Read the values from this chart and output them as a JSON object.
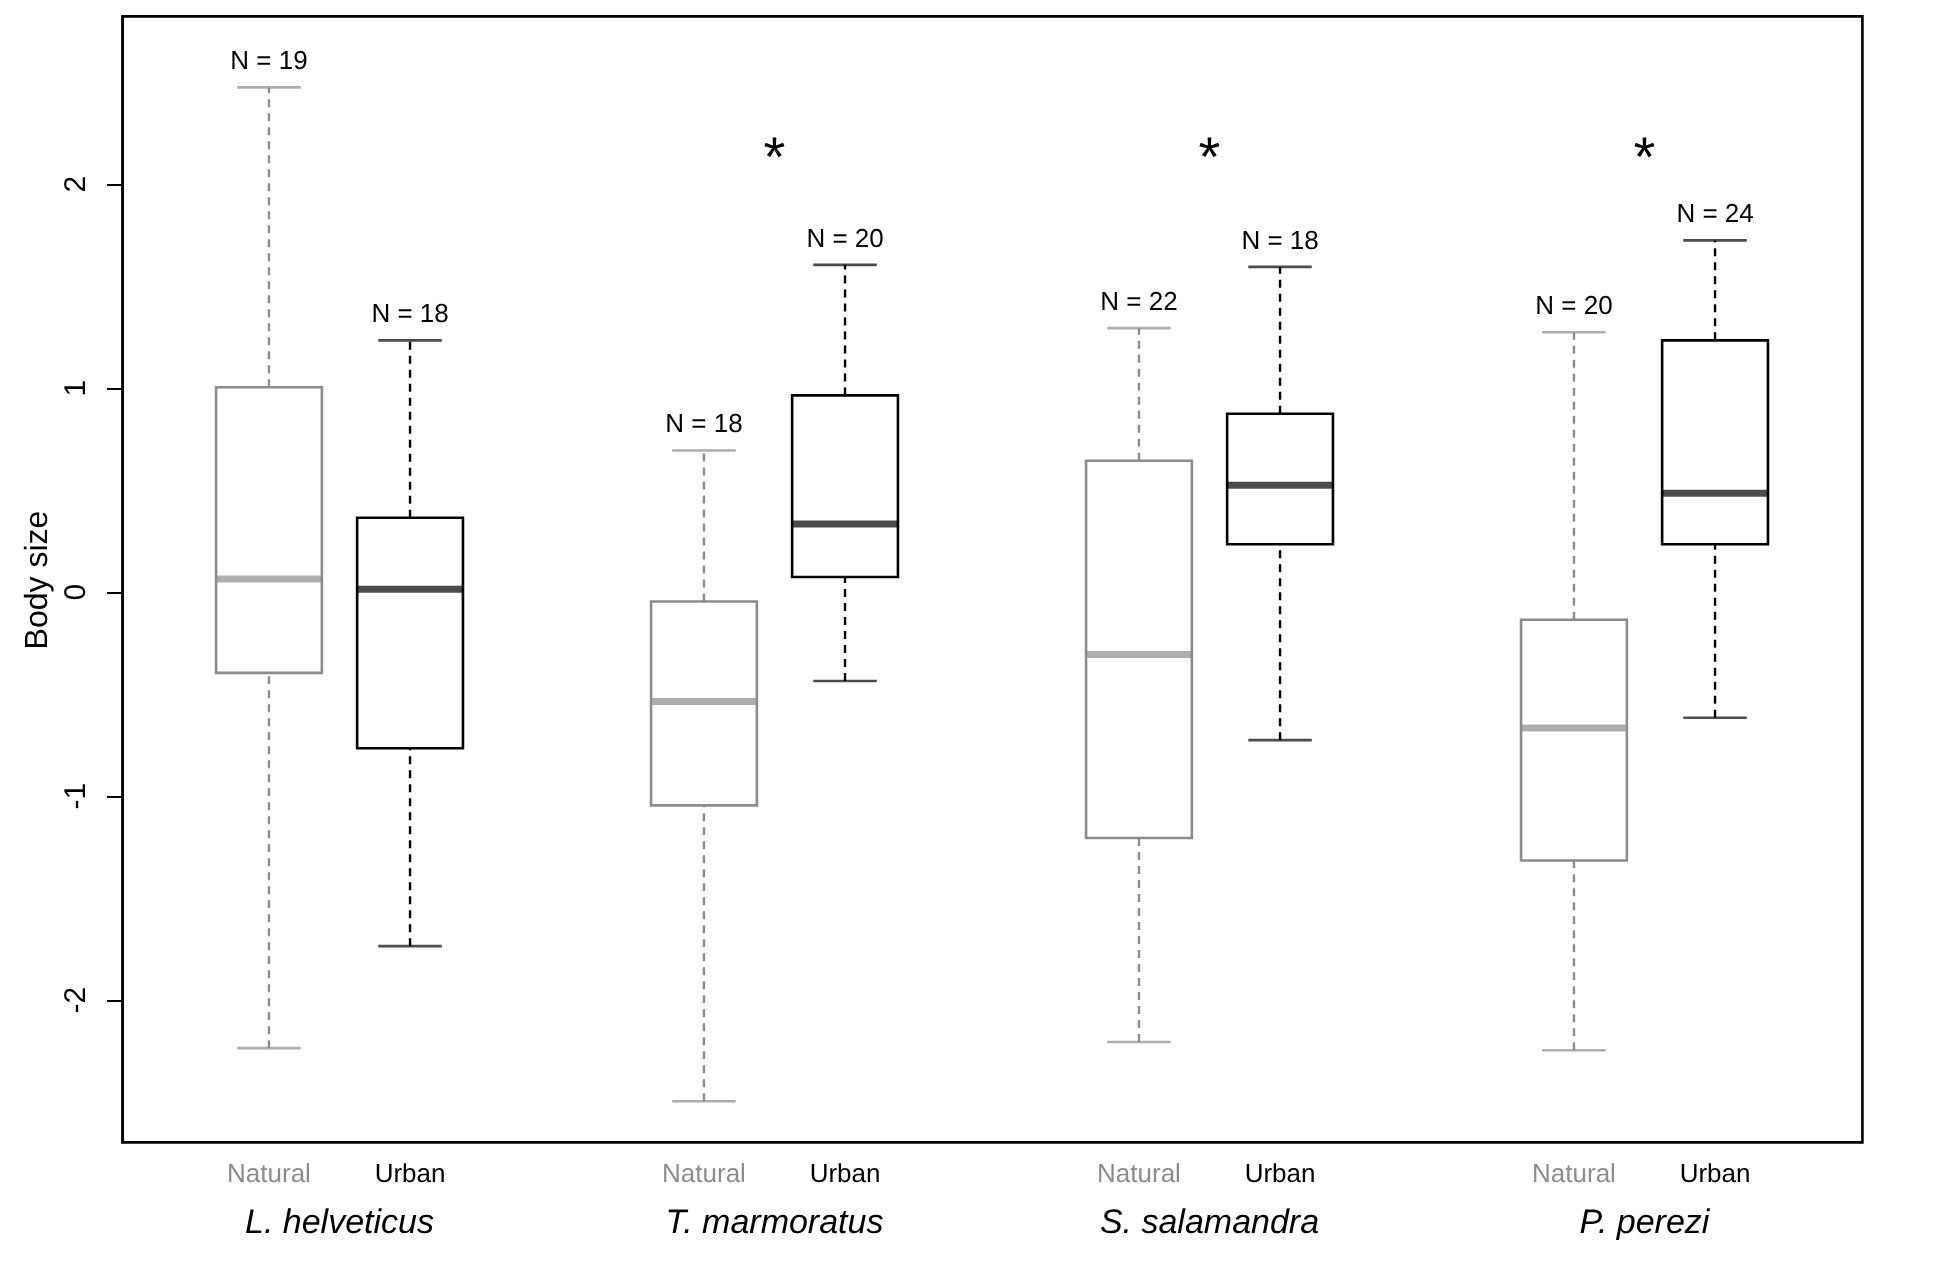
{
  "chart_data": {
    "type": "box",
    "ylabel": "Body size",
    "categories": [
      "L. helveticus",
      "T. marmoratus",
      "S. salamandra",
      "P. perezi"
    ],
    "ylim": [
      -2.7,
      2.82
    ],
    "yticks": [
      -2,
      -1,
      0,
      1,
      2
    ],
    "grid": false,
    "series": [
      {
        "name": "Natural",
        "color": "#8c8c8c",
        "value_labels": [
          "N = 19",
          "N = 18",
          "N = 22",
          "N = 20"
        ],
        "boxes": [
          {
            "low": -2.24,
            "q1": -0.4,
            "median": 0.06,
            "q3": 1.0,
            "high": 2.47
          },
          {
            "low": -2.5,
            "q1": -1.05,
            "median": -0.54,
            "q3": -0.05,
            "high": 0.69
          },
          {
            "low": -2.21,
            "q1": -1.21,
            "median": -0.31,
            "q3": 0.64,
            "high": 1.29
          },
          {
            "low": -2.25,
            "q1": -1.32,
            "median": -0.67,
            "q3": -0.14,
            "high": 1.27
          }
        ]
      },
      {
        "name": "Urban",
        "color": "#000000",
        "value_labels": [
          "N = 18",
          "N = 20",
          "N = 18",
          "N = 24"
        ],
        "boxes": [
          {
            "low": -1.74,
            "q1": -0.77,
            "median": 0.01,
            "q3": 0.36,
            "high": 1.23
          },
          {
            "low": -0.44,
            "q1": 0.07,
            "median": 0.33,
            "q3": 0.96,
            "high": 1.6
          },
          {
            "low": -0.73,
            "q1": 0.23,
            "median": 0.52,
            "q3": 0.87,
            "high": 1.59
          },
          {
            "low": -0.62,
            "q1": 0.23,
            "median": 0.48,
            "q3": 1.23,
            "high": 1.72
          }
        ]
      }
    ],
    "annotations": [
      "*",
      "*",
      "*"
    ]
  }
}
